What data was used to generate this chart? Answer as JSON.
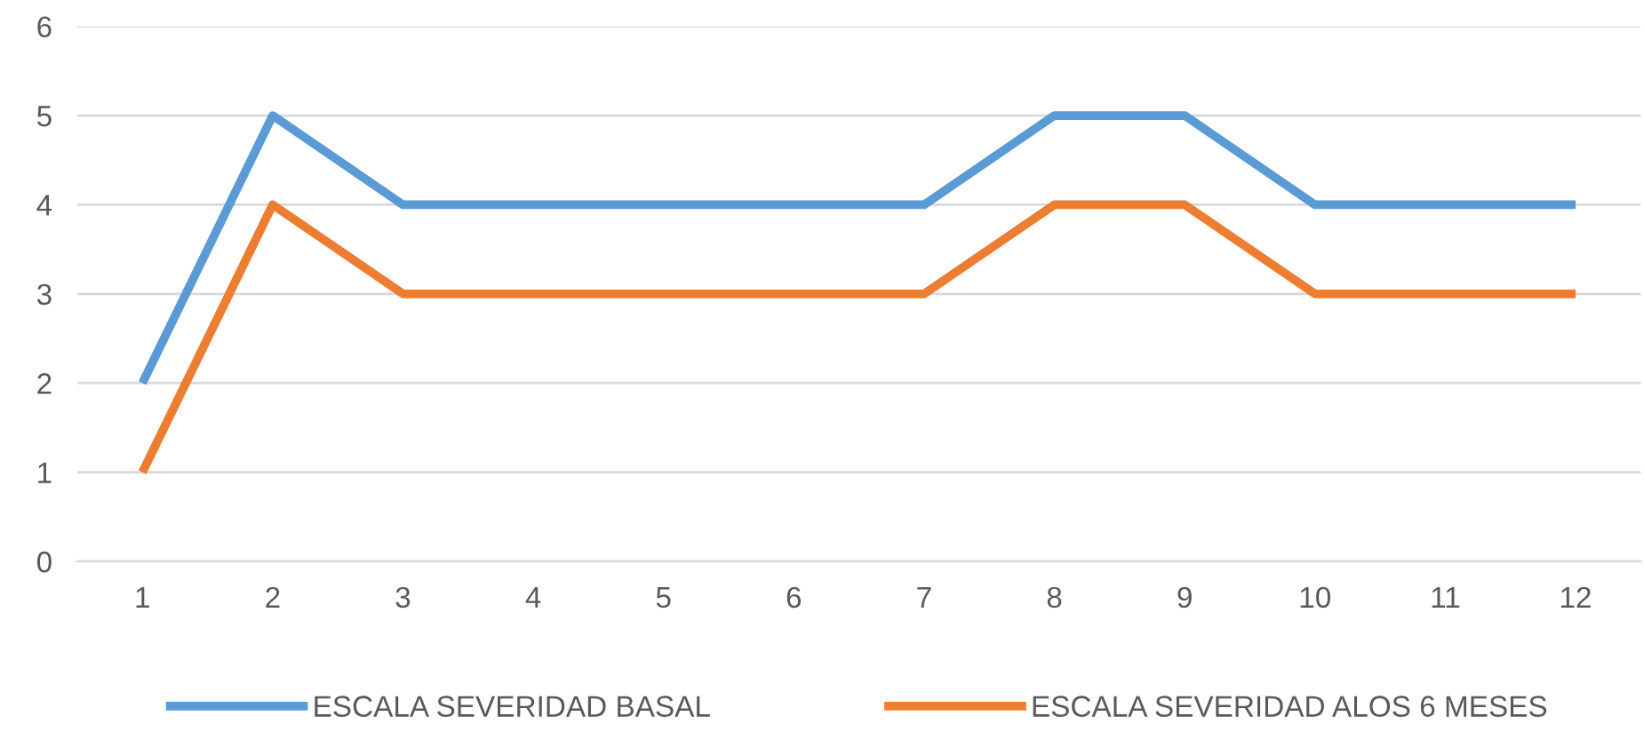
{
  "chart_data": {
    "type": "line",
    "categories": [
      "1",
      "2",
      "3",
      "4",
      "5",
      "6",
      "7",
      "8",
      "9",
      "10",
      "11",
      "12"
    ],
    "series": [
      {
        "name": "ESCALA SEVERIDAD BASAL",
        "color": "#5b9bd5",
        "values": [
          2,
          5,
          4,
          4,
          4,
          4,
          4,
          5,
          5,
          4,
          4,
          4
        ]
      },
      {
        "name": "ESCALA SEVERIDAD ALOS 6 MESES",
        "color": "#ed7d31",
        "values": [
          1,
          4,
          3,
          3,
          3,
          3,
          3,
          4,
          4,
          3,
          3,
          3
        ]
      }
    ],
    "ylim": [
      0,
      6
    ],
    "yticks": [
      0,
      1,
      2,
      3,
      4,
      5,
      6
    ],
    "grid": "y",
    "legend": "bottom",
    "marker": "none",
    "line_style": "solid"
  }
}
